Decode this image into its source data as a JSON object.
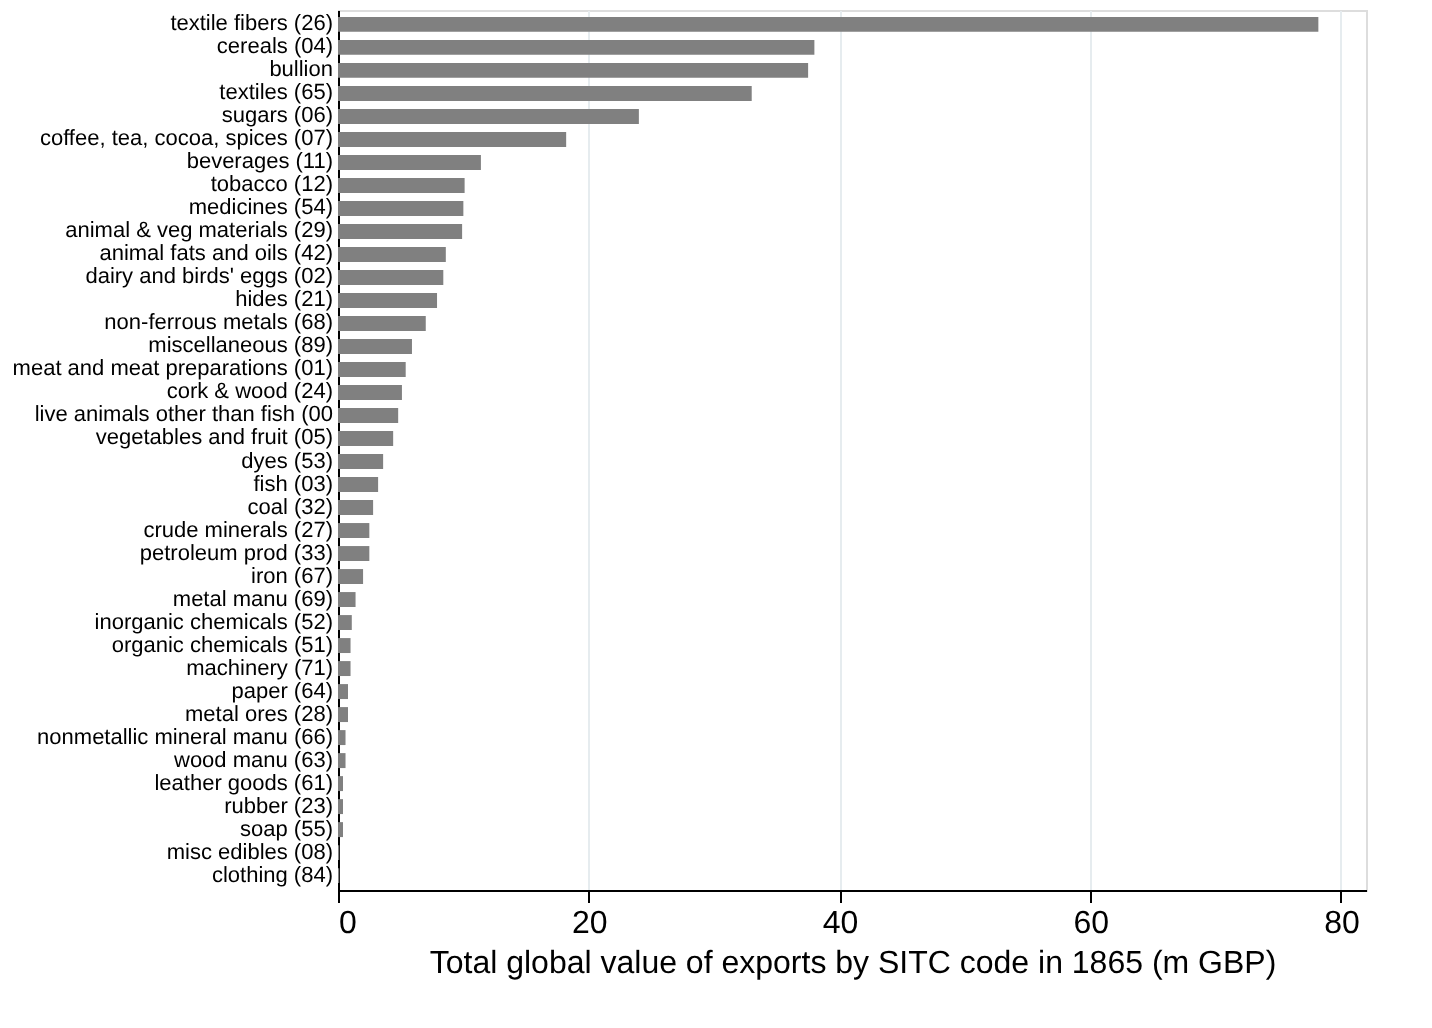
{
  "chart_data": {
    "type": "bar",
    "orientation": "horizontal",
    "xlabel": "Total global value of exports by SITC code in 1865 (m GBP)",
    "categories": [
      "textile fibers (26)",
      "cereals (04)",
      "bullion",
      "textiles (65)",
      "sugars (06)",
      "coffee, tea, cocoa, spices (07)",
      "beverages (11)",
      "tobacco (12)",
      "medicines (54)",
      "animal & veg materials (29)",
      "animal fats and oils (42)",
      "dairy and birds' eggs (02)",
      "hides (21)",
      "non-ferrous metals (68)",
      "miscellaneous (89)",
      "meat and meat preparations (01)",
      "cork & wood (24)",
      "live animals other than fish (00",
      "vegetables and fruit (05)",
      "dyes (53)",
      "fish (03)",
      "coal (32)",
      "crude minerals (27)",
      "petroleum prod (33)",
      "iron (67)",
      "metal manu (69)",
      "inorganic chemicals (52)",
      "organic chemicals (51)",
      "machinery (71)",
      "paper (64)",
      "metal ores (28)",
      "nonmetallic mineral manu (66)",
      "wood manu (63)",
      "leather goods (61)",
      "rubber (23)",
      "soap (55)",
      "misc edibles (08)",
      "clothing (84)"
    ],
    "values": [
      78.2,
      38,
      37.5,
      33,
      24,
      18.2,
      11.4,
      10.1,
      10.0,
      9.9,
      8.6,
      8.4,
      7.9,
      7.0,
      5.9,
      5.4,
      5.1,
      4.8,
      4.4,
      3.6,
      3.2,
      2.8,
      2.5,
      2.5,
      2.0,
      1.4,
      1.1,
      1.0,
      1.0,
      0.8,
      0.8,
      0.6,
      0.6,
      0.4,
      0.4,
      0.4,
      0.1,
      0.1
    ],
    "color": "#808080",
    "xlim": [
      0,
      82
    ],
    "xticks": [
      0,
      20,
      40,
      60,
      80
    ],
    "grid": "x"
  }
}
